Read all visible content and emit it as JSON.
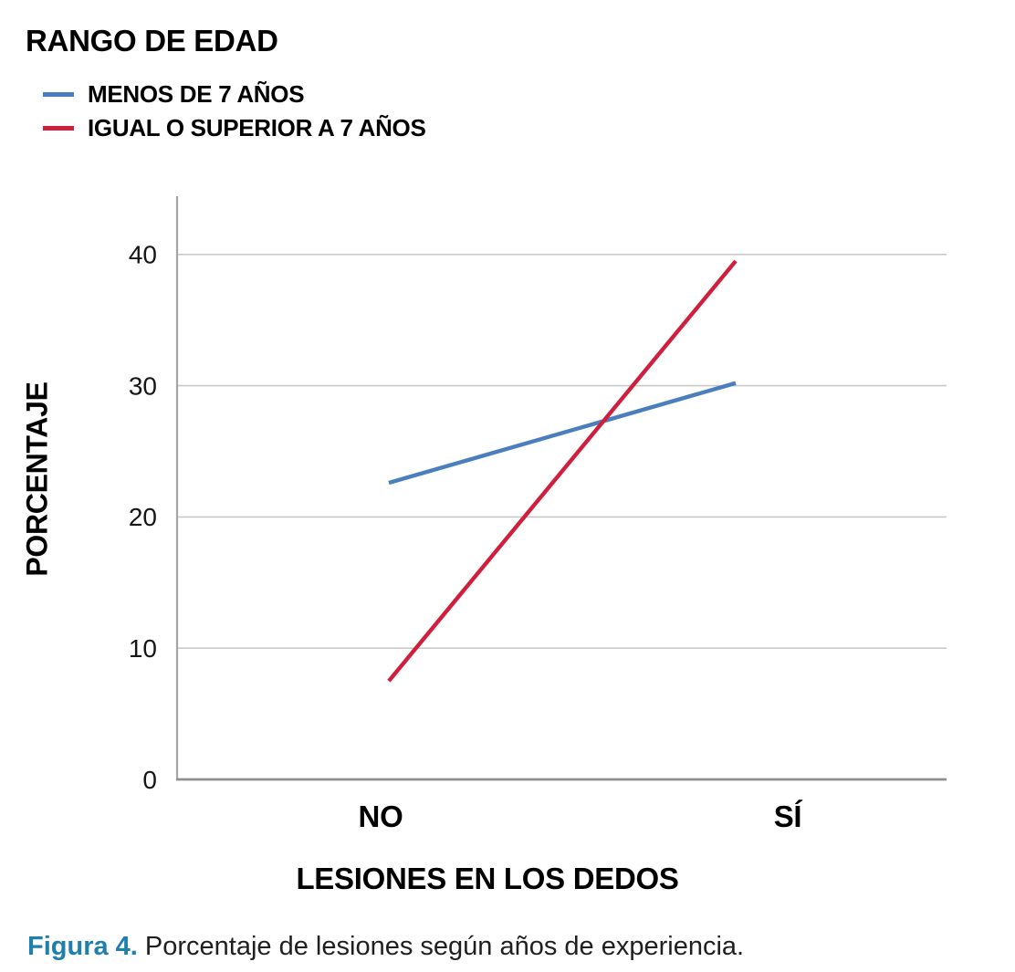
{
  "chart": {
    "title": "RANGO DE EDAD",
    "legend": [
      {
        "label": "MENOS DE 7 AÑOS",
        "color": "#4a7ebc"
      },
      {
        "label": "IGUAL O SUPERIOR A 7 AÑOS",
        "color": "#d01f3d"
      }
    ],
    "y_axis_title": "PORCENTAJE",
    "x_axis_title": "LESIONES EN LOS DEDOS"
  },
  "caption": {
    "label": "Figura 4.",
    "label_color": "#1f7fad",
    "text": " Porcentaje de lesiones según años de experiencia."
  },
  "chart_data": {
    "type": "line",
    "categories": [
      "NO",
      "SÍ"
    ],
    "series": [
      {
        "name": "MENOS DE 7 AÑOS",
        "color": "#4a7ebc",
        "values": [
          22.6,
          30.2
        ]
      },
      {
        "name": "IGUAL O SUPERIOR A 7 AÑOS",
        "color": "#d01f3d",
        "values": [
          7.5,
          39.5
        ]
      }
    ],
    "title": "RANGO DE EDAD",
    "xlabel": "LESIONES EN LOS DEDOS",
    "ylabel": "PORCENTAJE",
    "yticks": [
      0,
      10,
      20,
      30,
      40
    ],
    "ylim": [
      0,
      44.4
    ],
    "grid": true,
    "gridline_color": "#c9c9c9",
    "legend_position": "top-left"
  }
}
